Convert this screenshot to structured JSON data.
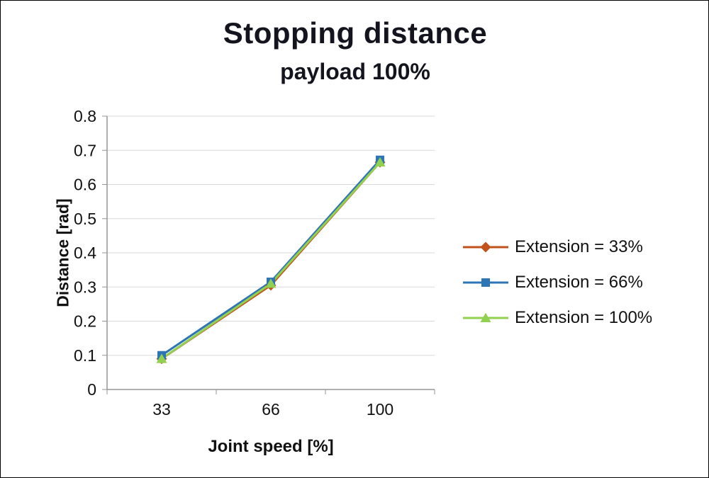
{
  "title": "Stopping distance",
  "subtitle": "payload 100%",
  "chart_data": {
    "type": "line",
    "categories": [
      "33",
      "66",
      "100"
    ],
    "series": [
      {
        "name": "Extension = 33%",
        "values": [
          0.09,
          0.305,
          0.665
        ],
        "color": "#C0531B",
        "marker": "diamond"
      },
      {
        "name": "Extension = 66%",
        "values": [
          0.1,
          0.315,
          0.672
        ],
        "color": "#2E75B6",
        "marker": "square"
      },
      {
        "name": "Extension = 100%",
        "values": [
          0.09,
          0.31,
          0.665
        ],
        "color": "#92D050",
        "marker": "triangle"
      }
    ],
    "title": "Stopping distance",
    "subtitle": "payload 100%",
    "xlabel": "Joint speed [%]",
    "ylabel": "Distance [rad]",
    "ylim": [
      0,
      0.8
    ],
    "ytick_step": 0.1,
    "grid": true,
    "legend_position": "right"
  },
  "style": {
    "grid_color": "#D9D9D9",
    "axis_color": "#969696",
    "tick_color": "#969696"
  }
}
